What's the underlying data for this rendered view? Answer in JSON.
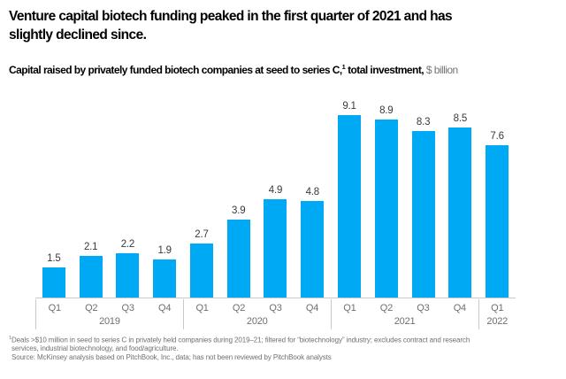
{
  "header": {
    "title": "Venture capital biotech funding peaked in the first quarter of 2021 and has\nslightly declined since."
  },
  "subtitle": {
    "text_bold": "Capital raised by privately funded biotech companies at seed to series C,",
    "footnote_marker": "1",
    "text_bold_2": " total investment,",
    "unit": " $ billion"
  },
  "chart_data": {
    "type": "bar",
    "title": "Capital raised by privately funded biotech companies at seed to series C, total investment, $ billion",
    "ylabel": "$ billion",
    "ylim": [
      0,
      9.1
    ],
    "grid": false,
    "legend": "none",
    "value_labels_shown": true,
    "groups": [
      {
        "year": "2019",
        "quarters": [
          "Q1",
          "Q2",
          "Q3",
          "Q4"
        ],
        "values": [
          1.5,
          2.1,
          2.2,
          1.9
        ]
      },
      {
        "year": "2020",
        "quarters": [
          "Q1",
          "Q2",
          "Q3",
          "Q4"
        ],
        "values": [
          2.7,
          3.9,
          4.9,
          4.8
        ]
      },
      {
        "year": "2021",
        "quarters": [
          "Q1",
          "Q2",
          "Q3",
          "Q4"
        ],
        "values": [
          9.1,
          8.9,
          8.3,
          8.5
        ]
      },
      {
        "year": "2022",
        "quarters": [
          "Q1"
        ],
        "values": [
          7.6
        ]
      }
    ],
    "values_flat": [
      1.5,
      2.1,
      2.2,
      1.9,
      2.7,
      3.9,
      4.9,
      4.8,
      9.1,
      8.9,
      8.3,
      8.5,
      7.6
    ]
  },
  "colors": {
    "bar": "#00a9f4",
    "axis_line": "#c9c9c9",
    "axis_label_gray": "#6f6f6f",
    "value_label": "#3a3a3a",
    "unit_gray": "#757575",
    "footnote_gray": "#707070",
    "title": "#000000"
  },
  "footnotes": {
    "marker": "1",
    "note": "Deals >$10 million in seed to series C in privately held companies during 2019–21; filtered for “biotechnology” industry; excludes contract and research\nservices, industrial biotechnology, and food/agriculture.",
    "source": "Source: McKinsey analysis based on PitchBook, Inc., data; has not been reviewed by PitchBook analysts"
  }
}
